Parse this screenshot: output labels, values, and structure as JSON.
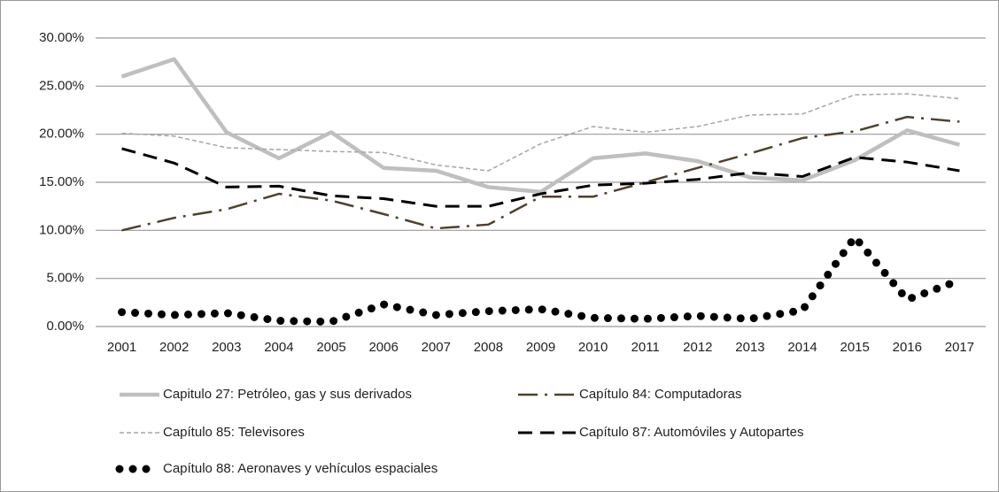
{
  "chart_data": {
    "type": "line",
    "categories": [
      "2001",
      "2002",
      "2003",
      "2004",
      "2005",
      "2006",
      "2007",
      "2008",
      "2009",
      "2010",
      "2011",
      "2012",
      "2013",
      "2014",
      "2015",
      "2016",
      "2017"
    ],
    "ylim": [
      0,
      30
    ],
    "yticks": [
      {
        "value": 0,
        "label": "0.00%"
      },
      {
        "value": 5,
        "label": "5.00%"
      },
      {
        "value": 10,
        "label": "10.00%"
      },
      {
        "value": 15,
        "label": "15.00%"
      },
      {
        "value": 20,
        "label": "20.00%"
      },
      {
        "value": 25,
        "label": "25.00%"
      },
      {
        "value": 30,
        "label": "30.00%"
      }
    ],
    "grid": true,
    "legend": "bottom",
    "series": [
      {
        "name": "Capitulo 27: Petróleo, gas y sus derivados",
        "color": "#bfbfbf",
        "style": "solid",
        "values": [
          26.0,
          27.8,
          20.2,
          17.5,
          20.2,
          16.5,
          16.2,
          14.5,
          14.0,
          17.5,
          18.0,
          17.2,
          15.5,
          15.2,
          17.3,
          20.4,
          18.9
        ]
      },
      {
        "name": "Capítulo 84: Computadoras",
        "color": "#4a4232",
        "style": "dashdot",
        "values": [
          10.0,
          11.3,
          12.2,
          13.8,
          13.1,
          11.7,
          10.2,
          10.6,
          13.5,
          13.5,
          15.0,
          16.5,
          18.0,
          19.6,
          20.3,
          21.8,
          21.3
        ]
      },
      {
        "name": "Capítulo 85: Televisores",
        "color": "#a6a6a6",
        "style": "dashed-thin",
        "values": [
          20.1,
          19.8,
          18.6,
          18.4,
          18.2,
          18.1,
          16.8,
          16.2,
          19.0,
          20.8,
          20.2,
          20.8,
          22.0,
          22.1,
          24.1,
          24.2,
          23.7
        ]
      },
      {
        "name": "Capítulo 87: Automóviles y  Autopartes",
        "color": "#000000",
        "style": "dashed",
        "values": [
          18.5,
          17.0,
          14.5,
          14.6,
          13.6,
          13.3,
          12.5,
          12.5,
          13.8,
          14.7,
          14.9,
          15.3,
          16.0,
          15.6,
          17.6,
          17.1,
          16.2
        ]
      },
      {
        "name": "Capítulo 88: Aeronaves y vehículos espaciales",
        "color": "#000000",
        "style": "dotted",
        "values": [
          1.5,
          1.2,
          1.4,
          0.6,
          0.5,
          2.3,
          1.2,
          1.6,
          1.8,
          0.9,
          0.8,
          1.1,
          0.8,
          1.7,
          9.3,
          2.8,
          4.8
        ]
      }
    ]
  }
}
